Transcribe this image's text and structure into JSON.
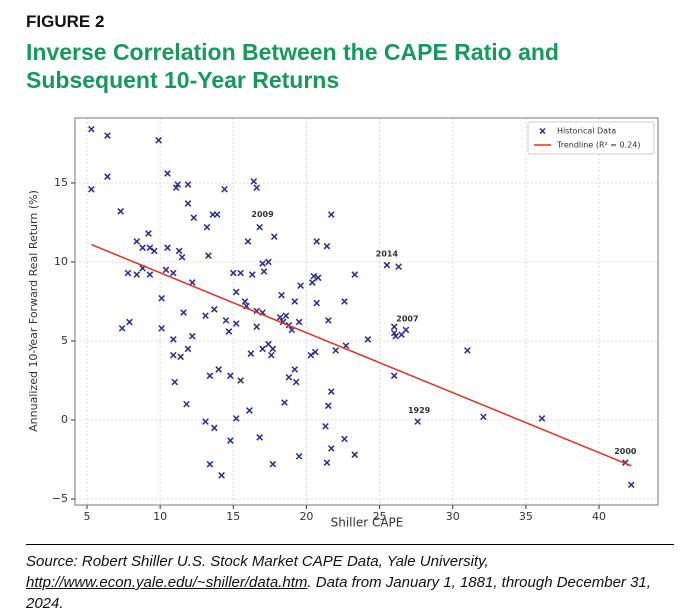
{
  "figure_label": "FIGURE 2",
  "chart_data": {
    "type": "scatter",
    "title": "Inverse Correlation Between the CAPE Ratio and Subsequent 10-Year Returns",
    "x_label": "Shiller CAPE",
    "y_label": "Annualized 10-Year Forward Real Return (%)",
    "xlim": [
      4.18,
      44.03
    ],
    "ylim": [
      -5.38,
      19.11
    ],
    "xticks": [
      5,
      10,
      15,
      20,
      25,
      30,
      35,
      40
    ],
    "yticks": [
      {
        "value": -5,
        "label": "−5"
      },
      0,
      5,
      10,
      15
    ],
    "grid": true,
    "legend": "upper right",
    "series": [
      {
        "name": "Historical Data",
        "color": "#2b2b8c",
        "x": [
          5.3,
          5.3,
          6.4,
          6.4,
          7.3,
          9.9,
          10.5,
          11.2,
          11.1,
          11.9,
          11.9,
          12.3,
          14.4,
          16.4,
          16.6,
          9.2,
          8.4,
          8.8,
          9.3,
          9.6,
          10.5,
          11.3,
          11.5,
          13.3,
          13.2,
          13.6,
          13.9,
          16.0,
          16.8,
          17.8,
          7.8,
          8.4,
          8.8,
          9.3,
          10.4,
          10.9,
          12.2,
          10.1,
          11.6,
          7.9,
          7.4,
          10.1,
          10.9,
          10.9,
          11.4,
          11.9,
          12.2,
          11.0,
          11.8,
          13.1,
          13.7,
          14.0,
          13.4,
          14.5,
          14.7,
          15.2,
          14.8,
          15.0,
          15.5,
          15.2,
          15.8,
          15.9,
          16.3,
          17.0,
          17.4,
          17.1,
          16.6,
          17.0,
          16.6,
          16.2,
          17.0,
          17.4,
          17.7,
          17.6,
          15.5,
          15.2,
          16.1,
          13.1,
          13.7,
          14.8,
          13.4,
          14.2,
          16.8,
          17.7,
          18.3,
          18.2,
          18.6,
          18.8,
          19.0,
          18.4,
          19.2,
          19.5,
          19.6,
          20.4,
          20.7,
          21.4,
          21.7,
          20.5,
          20.8,
          20.7,
          21.5,
          22.6,
          23.3,
          20.3,
          20.6,
          22.0,
          22.7,
          24.2,
          19.2,
          18.8,
          19.3,
          18.5,
          21.7,
          21.5,
          21.3,
          21.7,
          21.4,
          22.6,
          23.3,
          19.5,
          25.5,
          26.3,
          26.0,
          26.0,
          26.1,
          26.5,
          26.8,
          26.0,
          27.6,
          31.0,
          32.1,
          36.1,
          41.8,
          42.2
        ],
        "values": [
          18.4,
          14.6,
          18.0,
          15.4,
          13.2,
          17.7,
          15.6,
          14.9,
          14.7,
          14.9,
          13.7,
          12.8,
          14.6,
          15.1,
          14.7,
          11.8,
          11.3,
          10.9,
          10.9,
          10.7,
          10.9,
          10.7,
          10.3,
          10.4,
          12.2,
          13.0,
          13.0,
          11.3,
          12.2,
          11.6,
          9.3,
          9.2,
          9.6,
          9.2,
          9.5,
          9.3,
          8.7,
          7.7,
          6.8,
          6.2,
          5.8,
          5.8,
          5.1,
          4.1,
          4.0,
          4.5,
          5.3,
          2.4,
          1.0,
          6.6,
          7.0,
          3.2,
          2.8,
          6.3,
          5.6,
          6.1,
          2.8,
          9.3,
          9.3,
          8.1,
          7.5,
          7.2,
          9.2,
          9.9,
          10.0,
          9.4,
          6.9,
          6.8,
          5.9,
          4.2,
          4.5,
          4.8,
          4.5,
          4.1,
          2.5,
          0.1,
          0.6,
          -0.1,
          -0.5,
          -1.3,
          -2.8,
          -3.5,
          -1.1,
          -2.8,
          7.9,
          6.5,
          6.6,
          6.0,
          5.7,
          6.2,
          7.5,
          6.2,
          8.5,
          8.7,
          11.3,
          11.0,
          13.0,
          9.1,
          9.0,
          7.4,
          6.3,
          7.5,
          9.2,
          4.1,
          4.3,
          4.4,
          4.7,
          5.1,
          3.2,
          2.7,
          2.4,
          1.1,
          1.8,
          0.9,
          -0.4,
          -1.8,
          -2.7,
          -1.2,
          -2.2,
          -2.3,
          9.8,
          9.7,
          5.9,
          5.5,
          5.3,
          5.4,
          5.7,
          2.8,
          -0.1,
          4.4,
          0.2,
          0.1,
          -2.7,
          -4.1
        ]
      },
      {
        "name": "Trendline (R² = 0.24)",
        "color": "#e0302a",
        "x": [
          5.3,
          42.2
        ],
        "values": [
          11.1,
          -2.9
        ]
      }
    ],
    "annotations": [
      {
        "text": "2009",
        "x": 17.0,
        "y": 13.0
      },
      {
        "text": "2014",
        "x": 25.5,
        "y": 10.5
      },
      {
        "text": "2007",
        "x": 26.9,
        "y": 6.4
      },
      {
        "text": "1929",
        "x": 27.7,
        "y": 0.6
      },
      {
        "text": "2000",
        "x": 41.8,
        "y": -2.0
      }
    ]
  },
  "source": {
    "prefix": "Source: Robert Shiller U.S. Stock Market CAPE Data, Yale University, ",
    "link": "http://www.econ.yale.edu/~shiller/data.htm",
    "suffix": ". Data from January 1, 1881, through December 31, 2024."
  }
}
